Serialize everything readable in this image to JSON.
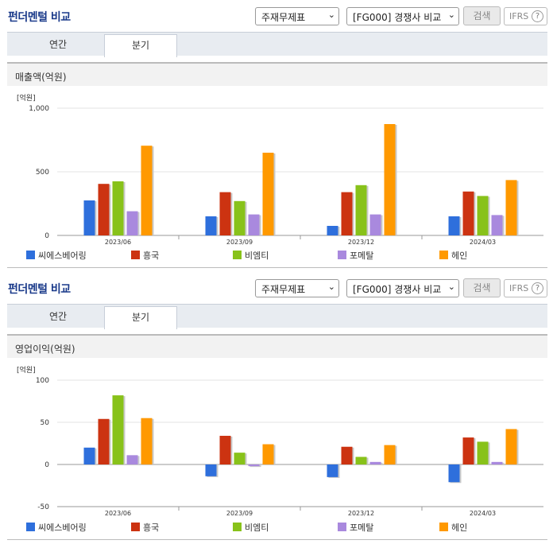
{
  "ui": {
    "title": "펀더멘털 비교",
    "select_statement": "주재무제표",
    "select_compare": "[FG000] 경쟁사 비교",
    "search_label": "검색",
    "ifrs_label": "IFRS",
    "help_glyph": "?",
    "tab_annual": "연간",
    "tab_quarter": "분기",
    "arrow_glyph": "⌄"
  },
  "colors": {
    "series": [
      "#2e6fdc",
      "#cc3311",
      "#88c21a",
      "#a989de",
      "#ff9900"
    ]
  },
  "chart_data": [
    {
      "type": "bar",
      "title": "매출액(억원)",
      "ylabel": "[억원]",
      "categories": [
        "2023/06",
        "2023/09",
        "2023/12",
        "2024/03"
      ],
      "series": [
        {
          "name": "씨에스베어링",
          "values": [
            275,
            150,
            75,
            150
          ]
        },
        {
          "name": "흥국",
          "values": [
            405,
            340,
            340,
            345
          ]
        },
        {
          "name": "비엠티",
          "values": [
            425,
            270,
            395,
            310
          ]
        },
        {
          "name": "포메탈",
          "values": [
            190,
            165,
            165,
            160
          ]
        },
        {
          "name": "헤인",
          "values": [
            705,
            650,
            875,
            435
          ]
        }
      ],
      "ylim": [
        0,
        1000
      ],
      "yticks": [
        0,
        500,
        1000
      ],
      "ytick_labels": [
        "0",
        "500",
        "1,000"
      ],
      "legend": "bottom"
    },
    {
      "type": "bar",
      "title": "영업이익(억원)",
      "ylabel": "[억원]",
      "categories": [
        "2023/06",
        "2023/09",
        "2023/12",
        "2024/03"
      ],
      "series": [
        {
          "name": "씨에스베어링",
          "values": [
            20,
            -14,
            -15,
            -21
          ]
        },
        {
          "name": "흥국",
          "values": [
            54,
            34,
            21,
            32
          ]
        },
        {
          "name": "비엠티",
          "values": [
            82,
            14,
            9,
            27
          ]
        },
        {
          "name": "포메탈",
          "values": [
            11,
            -2,
            3,
            3
          ]
        },
        {
          "name": "헤인",
          "values": [
            55,
            24,
            23,
            42
          ]
        }
      ],
      "ylim": [
        -50,
        100
      ],
      "yticks": [
        -50,
        0,
        50,
        100
      ],
      "ytick_labels": [
        "-50",
        "0",
        "50",
        "100"
      ],
      "legend": "bottom"
    }
  ]
}
